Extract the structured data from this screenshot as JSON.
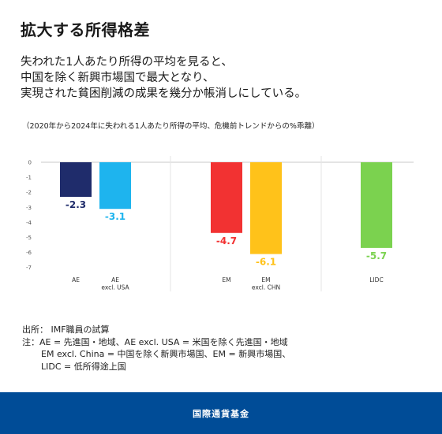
{
  "title": "拡大する所得格差",
  "subtitle": [
    "失われた1人あたり所得の平均を見ると、",
    "中国を除く新興市場国で最大となり、",
    "実現された貧困削減の成果を幾分か帳消しにしている。"
  ],
  "note": "（2020年から2024年に失われる1人あたり所得の平均、危機前トレンドからの%乖離）",
  "chart_data": {
    "type": "bar",
    "title": "",
    "xlabel": "",
    "ylabel": "",
    "ylim": [
      -7,
      0
    ],
    "yticks": [
      "0",
      "-1",
      "-2",
      "-3",
      "-4",
      "-5",
      "-6",
      "-7"
    ],
    "grid": false,
    "legend": "none",
    "groups": [
      {
        "labels": [
          "AE"
        ],
        "members": [
          0,
          1
        ]
      },
      {
        "labels": [
          "EM"
        ],
        "members": [
          2,
          3
        ]
      },
      {
        "labels": [
          "LIDC"
        ],
        "members": [
          4
        ]
      }
    ],
    "bars": [
      {
        "label": [
          "AE"
        ],
        "value": -2.3,
        "value_label": "-2.3",
        "color": "#1f2c6b"
      },
      {
        "label": [
          "AE",
          "excl. USA"
        ],
        "value": -3.1,
        "value_label": "-3.1",
        "color": "#1eb4ee"
      },
      {
        "label": [
          "EM"
        ],
        "value": -4.7,
        "value_label": "-4.7",
        "color": "#f23232"
      },
      {
        "label": [
          "EM",
          "excl. CHN"
        ],
        "value": -6.1,
        "value_label": "-6.1",
        "color": "#ffc21a"
      },
      {
        "label": [
          "LIDC"
        ],
        "value": -5.7,
        "value_label": "-5.7",
        "color": "#7bd24f"
      }
    ]
  },
  "footnotes": {
    "source": "出所： IMF職員の試算",
    "lines": [
      "注：AE = 先進国・地域、AE excl. USA = 米国を除く先進国・地域",
      "EM excl. China = 中国を除く新興市場国、EM  = 新興市場国、",
      "LIDC = 低所得途上国"
    ]
  },
  "footer": {
    "org": "国際通貨基金"
  }
}
